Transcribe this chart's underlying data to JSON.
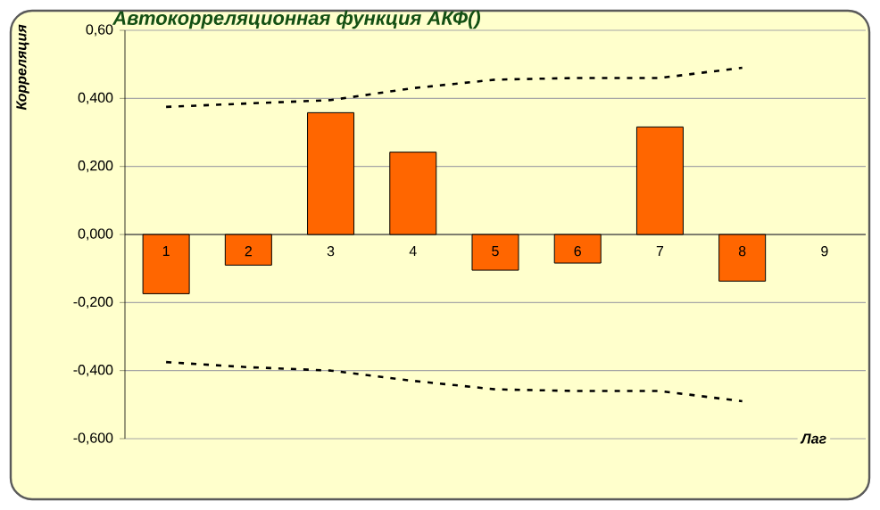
{
  "chart_data": {
    "type": "bar",
    "title": "Автокорреляционная функция АКФ()",
    "xlabel": "Лаг",
    "ylabel": "Корреляция",
    "categories": [
      "1",
      "2",
      "3",
      "4",
      "5",
      "6",
      "7",
      "8",
      "9"
    ],
    "series": [
      {
        "color": "#ff6600",
        "values": [
          -0.174,
          -0.09,
          0.358,
          0.242,
          -0.105,
          -0.084,
          0.316,
          -0.137,
          null
        ]
      },
      {
        "type": "line",
        "color": "#000000",
        "line_style": "dashed",
        "marker": "none",
        "values": [
          0.375,
          0.385,
          0.395,
          0.43,
          0.455,
          0.46,
          0.46,
          0.49,
          null
        ]
      },
      {
        "type": "line",
        "color": "#000000",
        "line_style": "dashed",
        "marker": "none",
        "values": [
          -0.375,
          -0.39,
          -0.4,
          -0.43,
          -0.455,
          -0.46,
          -0.46,
          -0.49,
          null
        ]
      }
    ],
    "ylim": [
      -0.6,
      0.6
    ],
    "yticks": [
      {
        "value": -0.6,
        "label": "-0,600"
      },
      {
        "value": -0.4,
        "label": "-0,400"
      },
      {
        "value": -0.2,
        "label": "-0,200"
      },
      {
        "value": 0,
        "label": "0,000"
      },
      {
        "value": 0.2,
        "label": "0,200"
      },
      {
        "value": 0.4,
        "label": "0,400"
      },
      {
        "value": 0.6,
        "label": "0,60"
      }
    ],
    "grid": "y"
  }
}
